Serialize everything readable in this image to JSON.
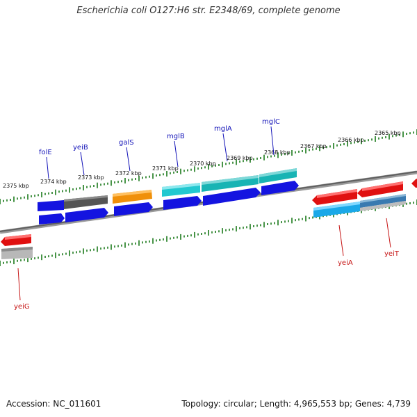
{
  "title": "Escherichia coli O127:H6 str. E2348/69, complete genome",
  "accession_text": "Accession: NC_011601",
  "summary_text": "Topology: circular; Length: 4,965,553 bp; Genes: 4,739",
  "colors": {
    "backbone": "#7a7a7a",
    "tick": "#1a7a1a",
    "label_top": "#1212b8",
    "label_bottom": "#c61515",
    "blue": "#1414e0",
    "red": "#e01010",
    "cyan": "#22c8d0",
    "teal": "#18b4b4",
    "orange": "#f0900a",
    "darkgray": "#555555",
    "lightgray": "#b8b8b8",
    "skyblue": "#1aa8e8",
    "steelblue": "#3a7ab0"
  },
  "scale_labels": [
    "2375 kbp",
    "2374 kbp",
    "2373 kbp",
    "2372 kbp",
    "2371 kbp",
    "2370 kbp",
    "2369 kbp",
    "2368 kbp",
    "2367 kbp",
    "2366 kbp",
    "2365 kbp"
  ],
  "genes_top": [
    "folE",
    "yeiB",
    "galS",
    "mglB",
    "mglA",
    "mglC"
  ],
  "genes_bottom": [
    "yeiG",
    "yeiA",
    "yeiT"
  ]
}
